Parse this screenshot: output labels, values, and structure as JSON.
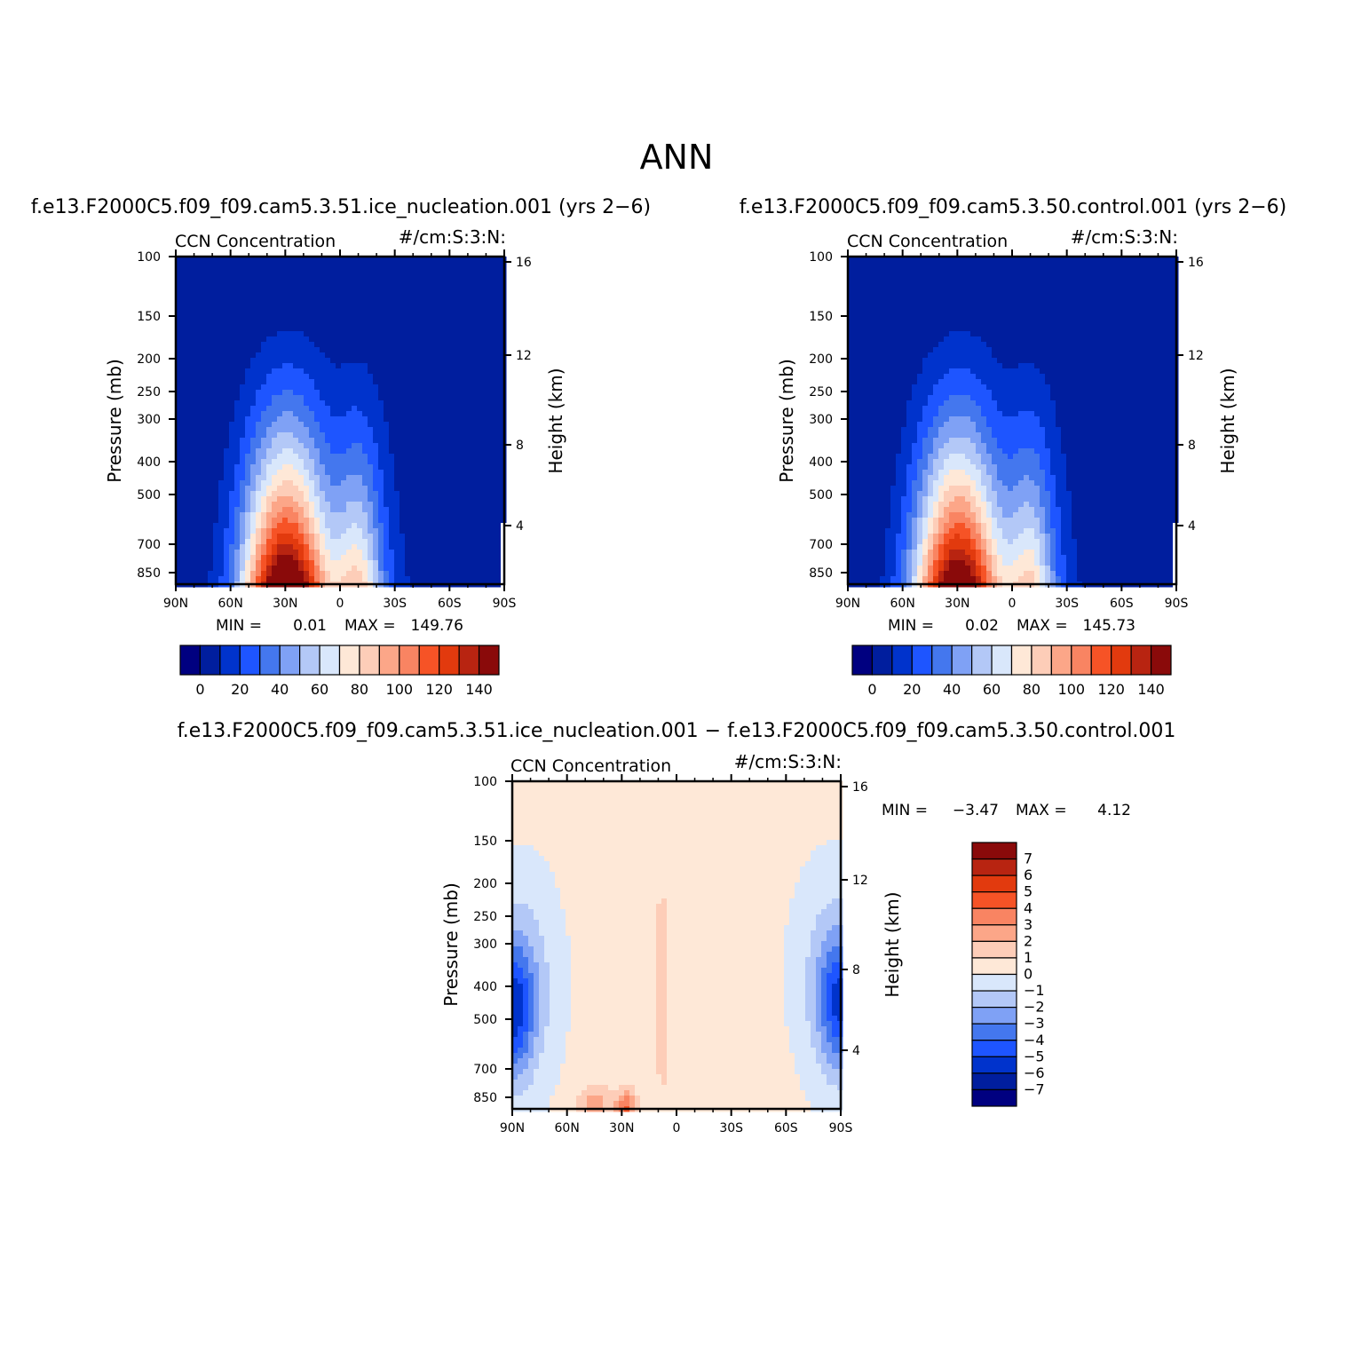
{
  "figure": {
    "season": "ANN",
    "colors": {
      "abs_levels": [
        "#000080",
        "#001e9e",
        "#0033cc",
        "#1e55ff",
        "#4477ee",
        "#7fa1f5",
        "#b3c8f7",
        "#d9e7fb",
        "#fee8d7",
        "#fdcdb8",
        "#fca688",
        "#f98462",
        "#f65326",
        "#e23a0e",
        "#b82411",
        "#8a0a0a"
      ],
      "diff_levels": [
        "#000080",
        "#001e9e",
        "#0033cc",
        "#1e55ff",
        "#4477ee",
        "#7fa1f5",
        "#b3c8f7",
        "#d9e7fb",
        "#fee8d7",
        "#fdcdb8",
        "#fca688",
        "#f98462",
        "#f65326",
        "#e23a0e",
        "#b82411",
        "#8a0a0a"
      ]
    }
  },
  "chart_data": [
    {
      "type": "heatmap",
      "title": "f.e13.F2000C5.f09_f09.cam5.3.51.ice_nucleation.001 (yrs 2−6)",
      "left_label": "CCN Concentration",
      "right_label": "#/cm:S:3:N:",
      "ylabel": "Pressure (mb)",
      "ylabel2": "Height (km)",
      "x_ticks": [
        "90N",
        "60N",
        "30N",
        "0",
        "30S",
        "60S",
        "90S"
      ],
      "y_ticks": [
        "100",
        "150",
        "200",
        "250",
        "300",
        "400",
        "500",
        "700",
        "850"
      ],
      "y2_ticks": [
        "16",
        "12",
        "8",
        "4"
      ],
      "stats": {
        "min_label": "MIN =",
        "min": "0.01",
        "max_label": "MAX =",
        "max": "149.76"
      },
      "colorbar_labels": [
        "0",
        "20",
        "40",
        "60",
        "80",
        "100",
        "120",
        "140"
      ],
      "peak_latitude": 30,
      "peak_value": 149.76
    },
    {
      "type": "heatmap",
      "title": "f.e13.F2000C5.f09_f09.cam5.3.50.control.001 (yrs 2−6)",
      "left_label": "CCN Concentration",
      "right_label": "#/cm:S:3:N:",
      "ylabel": "Pressure (mb)",
      "ylabel2": "Height (km)",
      "x_ticks": [
        "90N",
        "60N",
        "30N",
        "0",
        "30S",
        "60S",
        "90S"
      ],
      "y_ticks": [
        "100",
        "150",
        "200",
        "250",
        "300",
        "400",
        "500",
        "700",
        "850"
      ],
      "y2_ticks": [
        "16",
        "12",
        "8",
        "4"
      ],
      "stats": {
        "min_label": "MIN =",
        "min": "0.02",
        "max_label": "MAX =",
        "max": "145.73"
      },
      "colorbar_labels": [
        "0",
        "20",
        "40",
        "60",
        "80",
        "100",
        "120",
        "140"
      ],
      "peak_latitude": 30,
      "peak_value": 145.73
    },
    {
      "type": "heatmap",
      "title": "f.e13.F2000C5.f09_f09.cam5.3.51.ice_nucleation.001 − f.e13.F2000C5.f09_f09.cam5.3.50.control.001",
      "left_label": "CCN Concentration",
      "right_label": "#/cm:S:3:N:",
      "ylabel": "Pressure (mb)",
      "ylabel2": "Height (km)",
      "x_ticks": [
        "90N",
        "60N",
        "30N",
        "0",
        "30S",
        "60S",
        "90S"
      ],
      "y_ticks": [
        "100",
        "150",
        "200",
        "250",
        "300",
        "400",
        "500",
        "700",
        "850"
      ],
      "y2_ticks": [
        "16",
        "12",
        "8",
        "4"
      ],
      "stats": {
        "min_label": "MIN =",
        "min": "−3.47",
        "max_label": "MAX =",
        "max": "4.12"
      },
      "colorbar_labels": [
        "7",
        "6",
        "5",
        "4",
        "3",
        "2",
        "1",
        "0",
        "−1",
        "−2",
        "−3",
        "−4",
        "−5",
        "−6",
        "−7"
      ]
    }
  ]
}
